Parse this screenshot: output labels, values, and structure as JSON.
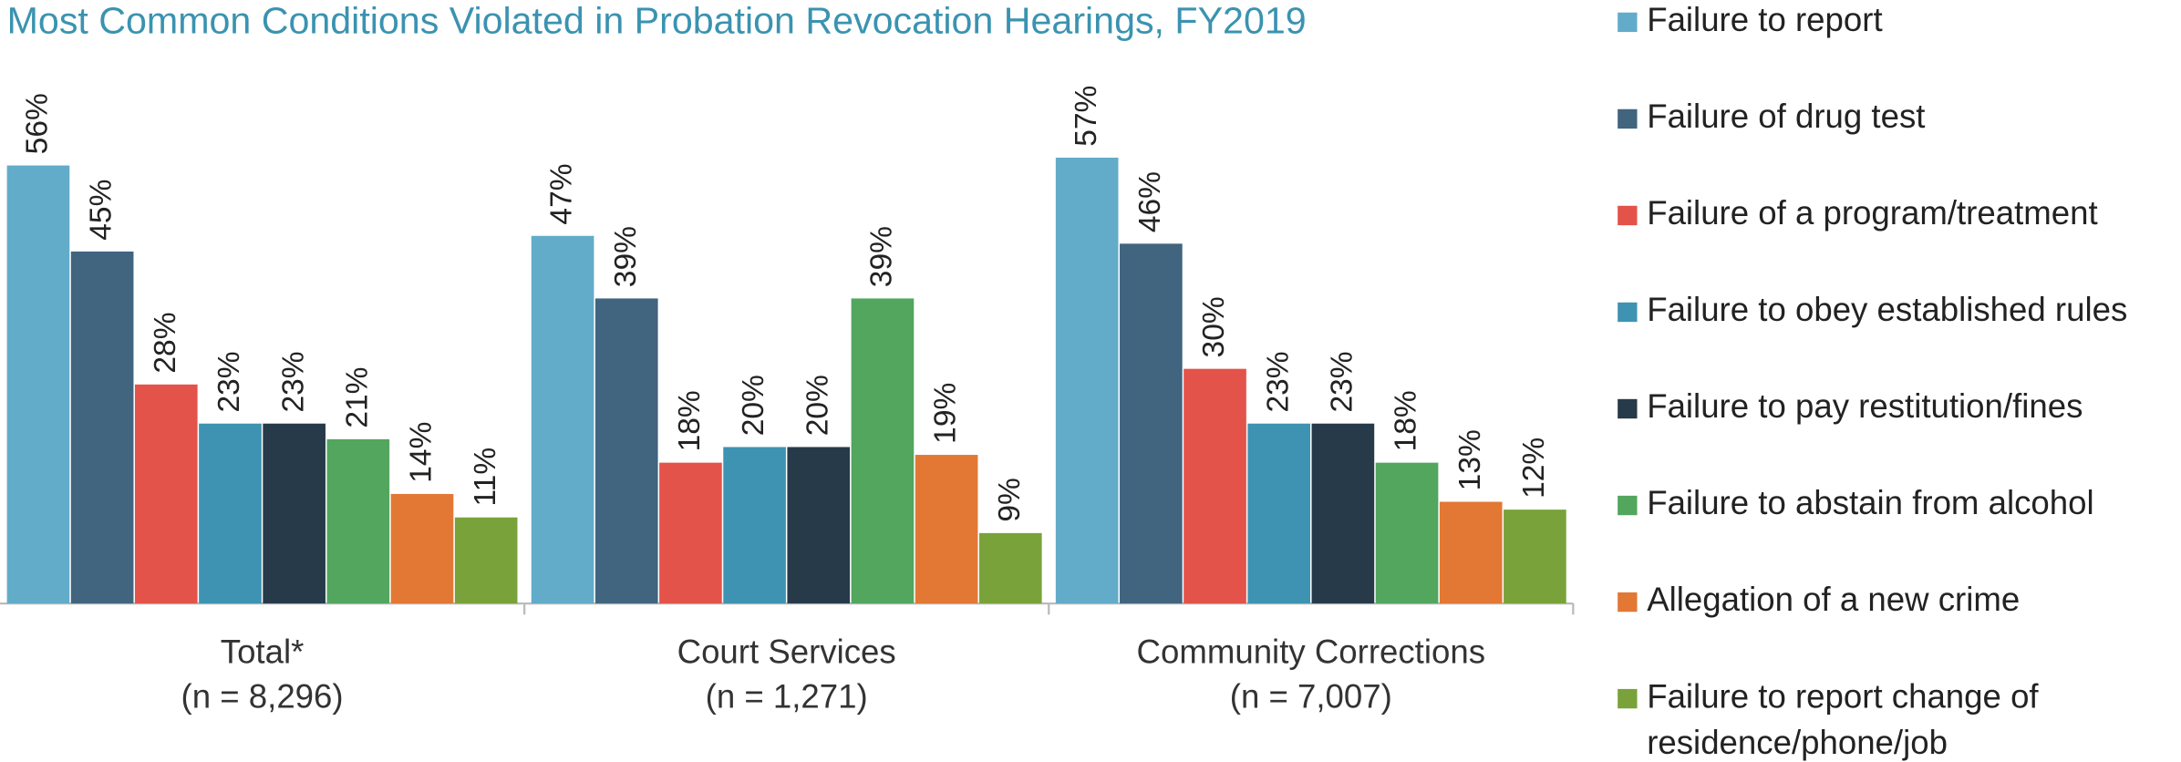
{
  "chart_data": {
    "type": "bar",
    "title": "Most Common Conditions Violated in Probation Revocation Hearings, FY2019",
    "categories": [
      "Total*",
      "Court Services",
      "Community Corrections"
    ],
    "category_notes": [
      "(n = 8,296)",
      "(n = 1,271)",
      "(n = 7,007)"
    ],
    "ylim": [
      0,
      60
    ],
    "legend": "right",
    "series": [
      {
        "name": "Failure to report",
        "color": "#62acc9",
        "values": [
          56,
          47,
          57
        ],
        "value_labels": [
          "56%",
          "47%",
          "57%"
        ]
      },
      {
        "name": "Failure of drug test",
        "color": "#41647f",
        "values": [
          45,
          39,
          46
        ],
        "value_labels": [
          "45%",
          "39%",
          "46%"
        ]
      },
      {
        "name": "Failure of a program/treatment",
        "color": "#e3534a",
        "values": [
          28,
          18,
          30
        ],
        "value_labels": [
          "28%",
          "18%",
          "30%"
        ]
      },
      {
        "name": "Failure to obey established rules",
        "color": "#3e93b2",
        "values": [
          23,
          20,
          23
        ],
        "value_labels": [
          "23%",
          "20%",
          "23%"
        ]
      },
      {
        "name": "Failure to pay restitution/fines",
        "color": "#263a4a",
        "values": [
          23,
          20,
          23
        ],
        "value_labels": [
          "23%",
          "20%",
          "23%"
        ]
      },
      {
        "name": "Failure to abstain from alcohol",
        "color": "#52a65e",
        "values": [
          21,
          39,
          18
        ],
        "value_labels": [
          "21%",
          "39%",
          "18%"
        ]
      },
      {
        "name": "Allegation of a new crime",
        "color": "#e27834",
        "values": [
          14,
          19,
          13
        ],
        "value_labels": [
          "14%",
          "19%",
          "13%"
        ]
      },
      {
        "name": "Failure to report change of residence/phone/job",
        "color": "#7aa23a",
        "values": [
          11,
          9,
          12
        ],
        "value_labels": [
          "11%",
          "9%",
          "12%"
        ]
      }
    ]
  }
}
